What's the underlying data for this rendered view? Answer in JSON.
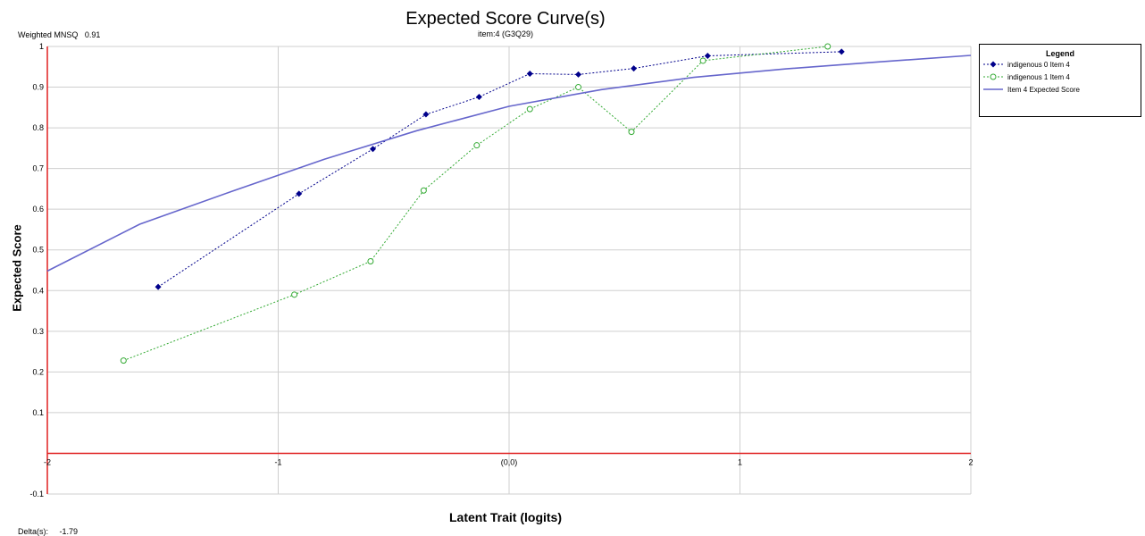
{
  "header": {
    "title": "Expected Score Curve(s)",
    "subtitle": "item:4 (G3Q29)"
  },
  "stats": {
    "mnsq_label": "Weighted MNSQ",
    "mnsq_value": "0.91",
    "delta_label": "Delta(s):",
    "delta_value": "-1.79"
  },
  "legend": {
    "title": "Legend",
    "items": [
      {
        "label": "indigenous 0 Item 4",
        "color": "#00008B",
        "marker": "diamond-filled",
        "line": "dotted"
      },
      {
        "label": "indigenous 1 Item 4",
        "color": "#33AA33",
        "marker": "circle-open",
        "line": "dotted"
      },
      {
        "label": "Item 4 Expected Score",
        "color": "#6666CC",
        "marker": "none",
        "line": "solid"
      }
    ]
  },
  "chart_data": {
    "type": "line",
    "title": "Expected Score Curve(s)",
    "subtitle": "item:4 (G3Q29)",
    "xlabel": "Latent Trait (logits)",
    "ylabel": "Expected Score",
    "xlim": [
      -2,
      2
    ],
    "ylim": [
      -0.1,
      1
    ],
    "x_ticks": [
      -2,
      -1,
      0,
      1,
      2
    ],
    "x_tick_labels": [
      "-2",
      "-1",
      "(0,0)",
      "1",
      "2"
    ],
    "y_ticks": [
      1,
      0.9,
      0.8,
      0.7,
      0.6,
      0.5,
      0.4,
      0.3,
      0.2,
      0.1,
      -0.1
    ],
    "y_tick_labels": [
      "1",
      "0.9",
      "0.8",
      "0.7",
      "0.6",
      "0.5",
      "0.4",
      "0.3",
      "0.2",
      "0.1",
      "-0.1"
    ],
    "grid": true,
    "legend_position": "top-right",
    "delta": -1.79,
    "series": [
      {
        "name": "indigenous 0 Item 4",
        "color": "#00008B",
        "x": [
          -1.52,
          -0.91,
          -0.59,
          -0.36,
          -0.13,
          0.09,
          0.3,
          0.54,
          0.86,
          1.44
        ],
        "y": [
          0.409,
          0.638,
          0.748,
          0.833,
          0.876,
          0.933,
          0.931,
          0.946,
          0.977,
          0.987
        ]
      },
      {
        "name": "indigenous 1 Item 4",
        "color": "#33AA33",
        "x": [
          -1.67,
          -0.93,
          -0.6,
          -0.37,
          -0.14,
          0.09,
          0.3,
          0.53,
          0.84,
          1.38
        ],
        "y": [
          0.228,
          0.39,
          0.472,
          0.646,
          0.757,
          0.846,
          0.9,
          0.79,
          0.965,
          1.0
        ]
      },
      {
        "name": "Item 4 Expected Score",
        "color": "#6666CC",
        "type": "curve",
        "x": [
          -2,
          -1.6,
          -1.2,
          -0.8,
          -0.4,
          0,
          0.4,
          0.8,
          1.2,
          1.6,
          2
        ],
        "y": [
          0.448,
          0.563,
          0.644,
          0.723,
          0.793,
          0.853,
          0.894,
          0.924,
          0.945,
          0.962,
          0.978
        ]
      }
    ]
  }
}
